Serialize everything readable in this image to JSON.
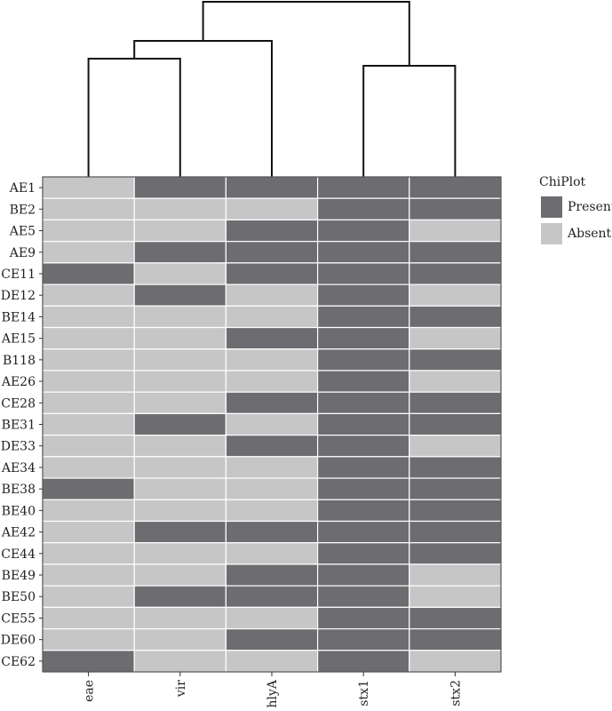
{
  "chart_data": {
    "type": "heatmap",
    "title": "",
    "xlabel": "",
    "ylabel": "",
    "columns": [
      "eae",
      "vir",
      "hlyA",
      "stx1",
      "stx2"
    ],
    "rows": [
      "AE1",
      "BE2",
      "AE5",
      "AE9",
      "CE11",
      "DE12",
      "BE14",
      "AE15",
      "B118",
      "AE26",
      "CE28",
      "BE31",
      "DE33",
      "AE34",
      "BE38",
      "BE40",
      "AE42",
      "CE44",
      "BE49",
      "BE50",
      "CE55",
      "DE60",
      "CE62"
    ],
    "values": [
      [
        0,
        1,
        1,
        1,
        1
      ],
      [
        0,
        0,
        0,
        1,
        1
      ],
      [
        0,
        0,
        1,
        1,
        0
      ],
      [
        0,
        1,
        1,
        1,
        1
      ],
      [
        1,
        0,
        1,
        1,
        1
      ],
      [
        0,
        1,
        0,
        1,
        0
      ],
      [
        0,
        0,
        0,
        1,
        1
      ],
      [
        0,
        0,
        1,
        1,
        0
      ],
      [
        0,
        0,
        0,
        1,
        1
      ],
      [
        0,
        0,
        0,
        1,
        0
      ],
      [
        0,
        0,
        1,
        1,
        1
      ],
      [
        0,
        1,
        0,
        1,
        1
      ],
      [
        0,
        0,
        1,
        1,
        0
      ],
      [
        0,
        0,
        0,
        1,
        1
      ],
      [
        1,
        0,
        0,
        1,
        1
      ],
      [
        0,
        0,
        0,
        1,
        1
      ],
      [
        0,
        1,
        1,
        1,
        1
      ],
      [
        0,
        0,
        0,
        1,
        1
      ],
      [
        0,
        0,
        1,
        1,
        0
      ],
      [
        0,
        1,
        1,
        1,
        0
      ],
      [
        0,
        0,
        0,
        1,
        1
      ],
      [
        0,
        0,
        1,
        1,
        1
      ],
      [
        1,
        0,
        0,
        1,
        0
      ]
    ],
    "legend": {
      "title": "ChiPlot",
      "position": "right",
      "entries": [
        {
          "label": "Present",
          "value": 1,
          "color": "#6d6c70"
        },
        {
          "label": "Absent",
          "value": 0,
          "color": "#c6c6c6"
        }
      ]
    },
    "dendrogram": {
      "position": "top",
      "merges": [
        {
          "left": "eae",
          "right": "vir"
        },
        {
          "left": "stx1",
          "right": "stx2"
        },
        {
          "left": "eae+vir",
          "right": "hlyA"
        },
        {
          "left": "eae+vir+hlyA",
          "right": "stx1+stx2"
        }
      ]
    }
  }
}
